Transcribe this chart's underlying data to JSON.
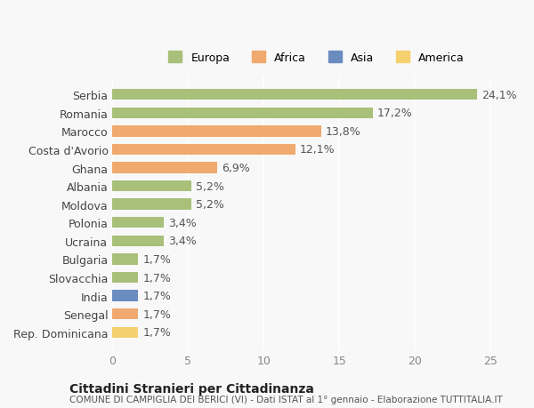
{
  "categories": [
    "Serbia",
    "Romania",
    "Marocco",
    "Costa d'Avorio",
    "Ghana",
    "Albania",
    "Moldova",
    "Polonia",
    "Ucraina",
    "Bulgaria",
    "Slovacchia",
    "India",
    "Senegal",
    "Rep. Dominicana"
  ],
  "values": [
    24.1,
    17.2,
    13.8,
    12.1,
    6.9,
    5.2,
    5.2,
    3.4,
    3.4,
    1.7,
    1.7,
    1.7,
    1.7,
    1.7
  ],
  "labels": [
    "24,1%",
    "17,2%",
    "13,8%",
    "12,1%",
    "6,9%",
    "5,2%",
    "5,2%",
    "3,4%",
    "3,4%",
    "1,7%",
    "1,7%",
    "1,7%",
    "1,7%",
    "1,7%"
  ],
  "bar_colors": [
    "#a8c07a",
    "#a8c07a",
    "#f0a96e",
    "#f0a96e",
    "#f0a96e",
    "#a8c07a",
    "#a8c07a",
    "#a8c07a",
    "#a8c07a",
    "#a8c07a",
    "#a8c07a",
    "#6b8cbf",
    "#f0a96e",
    "#f5d06e"
  ],
  "legend_labels": [
    "Europa",
    "Africa",
    "Asia",
    "America"
  ],
  "legend_colors": [
    "#a8c07a",
    "#f0a96e",
    "#6b8cbf",
    "#f5d06e"
  ],
  "xlim": [
    0,
    27
  ],
  "xticks": [
    0,
    5,
    10,
    15,
    20,
    25
  ],
  "title": "Cittadini Stranieri per Cittadinanza",
  "subtitle": "COMUNE DI CAMPIGLIA DEI BERICI (VI) - Dati ISTAT al 1° gennaio - Elaborazione TUTTITALIA.IT",
  "background_color": "#f8f8f8",
  "bar_height": 0.6,
  "label_fontsize": 9,
  "tick_fontsize": 9
}
